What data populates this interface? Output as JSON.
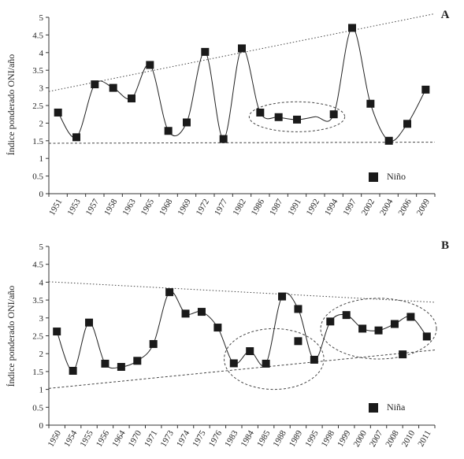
{
  "chart_data": [
    {
      "type": "line",
      "panel_label": "A",
      "ylabel": "Índice ponderado ONI/año",
      "xlabel": "",
      "ylim": [
        0,
        5
      ],
      "yticks": [
        "0",
        "0.5",
        "1",
        "1.5",
        "2",
        "2.5",
        "3",
        "3.5",
        "4",
        "4.5",
        "5"
      ],
      "categories": [
        "1951",
        "1953",
        "1957",
        "1958",
        "1963",
        "1965",
        "1968",
        "1969",
        "1972",
        "1977",
        "1982",
        "1986",
        "1987",
        "1991",
        "1992",
        "1994",
        "1997",
        "2002",
        "2004",
        "2006",
        "2009"
      ],
      "series": [
        {
          "name": "Niño",
          "values": [
            2.3,
            1.6,
            3.1,
            3.0,
            2.7,
            3.65,
            1.78,
            2.02,
            4.02,
            1.55,
            4.12,
            2.3,
            2.17,
            2.1,
            null,
            2.25,
            4.7,
            2.55,
            1.5,
            1.98,
            2.95
          ]
        }
      ],
      "curve_values": [
        2.3,
        1.6,
        3.1,
        3.0,
        2.7,
        3.65,
        1.78,
        2.02,
        4.02,
        1.55,
        4.12,
        2.3,
        2.17,
        2.1,
        2.18,
        2.25,
        4.7,
        2.55,
        1.5,
        1.98,
        2.95
      ],
      "trend_lines": [
        {
          "style": "dotted",
          "from": {
            "category": "1951",
            "value": 2.95
          },
          "to": {
            "category": "2009",
            "value": 5.05
          }
        },
        {
          "style": "dashed",
          "from": {
            "category": "1951",
            "value": 1.43
          },
          "to": {
            "category": "2009",
            "value": 1.46
          }
        }
      ],
      "highlight_ellipse": {
        "from_category": "1986",
        "to_category": "1994",
        "center_value": 2.18
      },
      "legend": {
        "label": "Niño",
        "position": "lower-right",
        "marker": "square"
      },
      "grid": false
    },
    {
      "type": "line",
      "panel_label": "B",
      "ylabel": "Índice ponderado ONI/año",
      "xlabel": "",
      "ylim": [
        0,
        5
      ],
      "yticks": [
        "0",
        "0.5",
        "1",
        "1.5",
        "2",
        "2.5",
        "3",
        "3.5",
        "4",
        "4.5",
        "5"
      ],
      "categories": [
        "1950",
        "1954",
        "1955",
        "1956",
        "1964",
        "1970",
        "1971",
        "1973",
        "1974",
        "1975",
        "1976",
        "1983",
        "1984",
        "1985",
        "1988",
        "1989",
        "1995",
        "1998",
        "1999",
        "2000",
        "2007",
        "2008",
        "2010",
        "2011"
      ],
      "series": [
        {
          "name": "Niña",
          "values": [
            2.62,
            1.52,
            2.87,
            1.72,
            1.63,
            1.8,
            2.27,
            3.72,
            3.12,
            3.17,
            2.73,
            1.73,
            2.07,
            1.72,
            3.6,
            3.25,
            1.83,
            2.9,
            3.08,
            2.7,
            2.65,
            2.83,
            3.03,
            2.48
          ]
        }
      ],
      "curve_values": [
        2.62,
        1.52,
        2.87,
        1.72,
        1.63,
        1.8,
        2.27,
        3.72,
        3.12,
        3.17,
        2.73,
        1.73,
        2.07,
        1.72,
        3.6,
        3.25,
        1.83,
        2.9,
        3.08,
        2.7,
        2.65,
        2.83,
        3.03,
        2.48
      ],
      "extra_points": [
        {
          "category_index": 15,
          "value": 2.35
        },
        {
          "category_index": 21.5,
          "value": 1.98
        }
      ],
      "trend_lines": [
        {
          "style": "dotted",
          "from": {
            "category": "1950",
            "value": 4.0
          },
          "to": {
            "category": "2011",
            "value": 3.45
          }
        },
        {
          "style": "dashed",
          "from": {
            "category": "1950",
            "value": 1.05
          },
          "to": {
            "category": "2011",
            "value": 2.08
          }
        }
      ],
      "highlight_ellipses": [
        {
          "from_category": "1983",
          "to_category": "1995",
          "center_value": 1.85
        },
        {
          "from_category": "1998",
          "to_category": "2011",
          "center_value": 2.7
        }
      ],
      "legend": {
        "label": "Niña",
        "position": "lower-right",
        "marker": "square"
      },
      "grid": false
    }
  ]
}
